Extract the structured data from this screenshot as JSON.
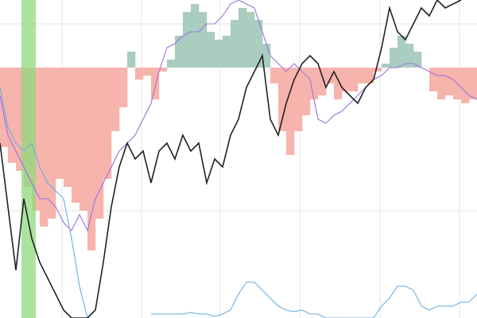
{
  "chart_data": {
    "type": "line",
    "xlim": [
      0,
      600
    ],
    "ylim": [
      0,
      400
    ],
    "y2lim": [
      -315,
      85
    ],
    "xticks": [
      78,
      178,
      277,
      377,
      478,
      578
    ],
    "yticks": [
      370,
      135
    ],
    "grid": true,
    "highlight_span": [
      27,
      45
    ],
    "highlight_color": "#8fd97e",
    "x": [
      0,
      10,
      20,
      30,
      40,
      50,
      60,
      70,
      80,
      90,
      100,
      110,
      120,
      130,
      140,
      150,
      160,
      170,
      180,
      190,
      200,
      210,
      220,
      230,
      240,
      250,
      260,
      270,
      280,
      290,
      300,
      310,
      320,
      330,
      340,
      350,
      360,
      370,
      380,
      390,
      400,
      410,
      420,
      430,
      440,
      450,
      460,
      470,
      480,
      490,
      500,
      510,
      520,
      530,
      540,
      550,
      560,
      570,
      580,
      590,
      600
    ],
    "bars": {
      "axis": "y2",
      "positive_color": "#a9cdbf",
      "negative_color": "#f6b4ad",
      "x": [
        0,
        10,
        20,
        30,
        40,
        50,
        60,
        70,
        80,
        90,
        100,
        110,
        120,
        130,
        140,
        150,
        160,
        170,
        180,
        190,
        200,
        210,
        220,
        230,
        240,
        250,
        260,
        270,
        280,
        290,
        300,
        310,
        320,
        330,
        340,
        350,
        360,
        370,
        380,
        390,
        400,
        410,
        420,
        430,
        440,
        450,
        460,
        470,
        480,
        490,
        500,
        510,
        520,
        530,
        540,
        550,
        560,
        570,
        580,
        590
      ],
      "values": [
        -100,
        -120,
        -130,
        -150,
        -180,
        -200,
        -190,
        -140,
        -150,
        -170,
        -180,
        -230,
        -190,
        -140,
        -80,
        -50,
        20,
        -15,
        -10,
        -40,
        -5,
        10,
        40,
        70,
        80,
        70,
        45,
        35,
        40,
        60,
        75,
        70,
        60,
        30,
        -20,
        -80,
        -110,
        -80,
        -60,
        -40,
        -35,
        -20,
        -40,
        -30,
        -30,
        -20,
        -20,
        -5,
        5,
        25,
        40,
        30,
        20,
        0,
        -30,
        -40,
        -35,
        -40,
        -45,
        -40
      ]
    },
    "series": [
      {
        "color": "#9b72e0",
        "values": [
          280,
          230,
          210,
          190,
          170,
          150,
          150,
          140,
          120,
          110,
          130,
          110,
          150,
          170,
          190,
          210,
          220,
          230,
          250,
          270,
          310,
          340,
          345,
          355,
          360,
          360,
          370,
          370,
          380,
          395,
          400,
          395,
          390,
          360,
          330,
          320,
          310,
          320,
          310,
          300,
          250,
          245,
          255,
          260,
          270,
          280,
          290,
          300,
          305,
          315,
          315,
          320,
          320,
          315,
          310,
          305,
          305,
          300,
          290,
          280,
          275
        ]
      },
      {
        "color": "#6aaee0",
        "values": [
          290,
          240,
          220,
          210,
          220,
          190,
          170,
          160,
          150,
          100,
          40,
          0,
          null,
          null,
          null,
          null,
          null,
          null,
          null,
          5,
          5,
          5,
          5,
          5,
          7,
          5,
          5,
          2,
          5,
          10,
          30,
          45,
          45,
          35,
          25,
          15,
          10,
          8,
          10,
          5,
          5,
          0,
          0,
          0,
          0,
          0,
          0,
          0,
          15,
          25,
          40,
          40,
          35,
          15,
          10,
          15,
          15,
          15,
          20,
          20,
          30
        ]
      },
      {
        "color": "#222222",
        "values": [
          220,
          140,
          60,
          150,
          100,
          70,
          50,
          30,
          10,
          0,
          0,
          0,
          10,
          70,
          140,
          190,
          220,
          200,
          210,
          170,
          210,
          220,
          200,
          230,
          210,
          220,
          170,
          200,
          190,
          230,
          250,
          290,
          310,
          330,
          250,
          230,
          270,
          300,
          320,
          330,
          320,
          290,
          310,
          290,
          280,
          270,
          290,
          300,
          340,
          390,
          360,
          350,
          370,
          390,
          380,
          400,
          390,
          395,
          400,
          null,
          null
        ]
      }
    ]
  }
}
